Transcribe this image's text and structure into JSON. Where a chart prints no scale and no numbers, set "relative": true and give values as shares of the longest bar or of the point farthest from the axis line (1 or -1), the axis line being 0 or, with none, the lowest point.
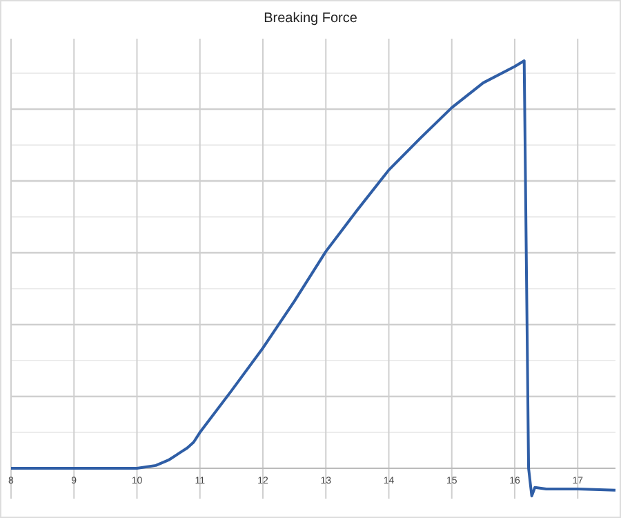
{
  "chart_data": {
    "type": "line",
    "title": "Breaking Force",
    "relative": true,
    "xlim": [
      8,
      17.6
    ],
    "xticks": [
      8,
      9,
      10,
      11,
      12,
      13,
      14,
      15,
      16,
      17
    ],
    "grid": true,
    "line_style": "solid",
    "marker": "none",
    "series": [
      {
        "color": "#2f5ea6",
        "x": [
          8,
          9,
          10,
          10.3,
          10.5,
          10.7,
          10.8,
          10.9,
          11,
          11.5,
          12,
          12.5,
          13,
          13.5,
          14,
          14.5,
          15,
          15.5,
          16,
          16.15,
          16.22,
          16.27,
          16.32,
          16.5,
          17,
          17.6
        ],
        "values": [
          0,
          0,
          0,
          0.007,
          0.02,
          0.04,
          0.05,
          0.064,
          0.088,
          0.19,
          0.295,
          0.41,
          0.532,
          0.634,
          0.732,
          0.81,
          0.885,
          0.946,
          0.986,
          1,
          0,
          -0.068,
          -0.047,
          -0.051,
          -0.051,
          -0.054
        ]
      }
    ]
  }
}
